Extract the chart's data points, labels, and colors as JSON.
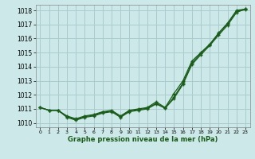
{
  "xlabel": "Graphe pression niveau de la mer (hPa)",
  "background_color": "#cce8e8",
  "grid_color": "#aacccc",
  "line_color": "#1a5c1a",
  "x": [
    0,
    1,
    2,
    3,
    4,
    5,
    6,
    7,
    8,
    9,
    10,
    11,
    12,
    13,
    14,
    15,
    16,
    17,
    18,
    19,
    20,
    21,
    22,
    23
  ],
  "series1": [
    1011.1,
    1010.9,
    1010.9,
    1010.5,
    1010.3,
    1010.5,
    1010.6,
    1010.8,
    1010.9,
    1010.5,
    1010.9,
    1011.0,
    1011.1,
    1011.5,
    1011.1,
    1012.1,
    1013.0,
    1014.4,
    1015.0,
    1015.6,
    1016.4,
    1017.1,
    1018.0,
    1018.1
  ],
  "series2": [
    1011.1,
    1010.9,
    1010.9,
    1010.45,
    1010.25,
    1010.45,
    1010.55,
    1010.75,
    1010.85,
    1010.45,
    1010.85,
    1010.95,
    1011.05,
    1011.4,
    1011.05,
    1011.85,
    1012.85,
    1014.25,
    1014.95,
    1015.55,
    1016.35,
    1017.05,
    1017.95,
    1018.05
  ],
  "series3": [
    1011.1,
    1010.9,
    1010.9,
    1010.4,
    1010.2,
    1010.4,
    1010.5,
    1010.7,
    1010.8,
    1010.4,
    1010.8,
    1010.9,
    1011.0,
    1011.35,
    1011.05,
    1011.75,
    1012.75,
    1014.15,
    1014.85,
    1015.5,
    1016.25,
    1016.95,
    1017.85,
    1018.1
  ],
  "ylim": [
    1009.7,
    1018.4
  ],
  "yticks": [
    1010,
    1011,
    1012,
    1013,
    1014,
    1015,
    1016,
    1017,
    1018
  ],
  "xticks": [
    0,
    1,
    2,
    3,
    4,
    5,
    6,
    7,
    8,
    9,
    10,
    11,
    12,
    13,
    14,
    15,
    16,
    17,
    18,
    19,
    20,
    21,
    22,
    23
  ]
}
